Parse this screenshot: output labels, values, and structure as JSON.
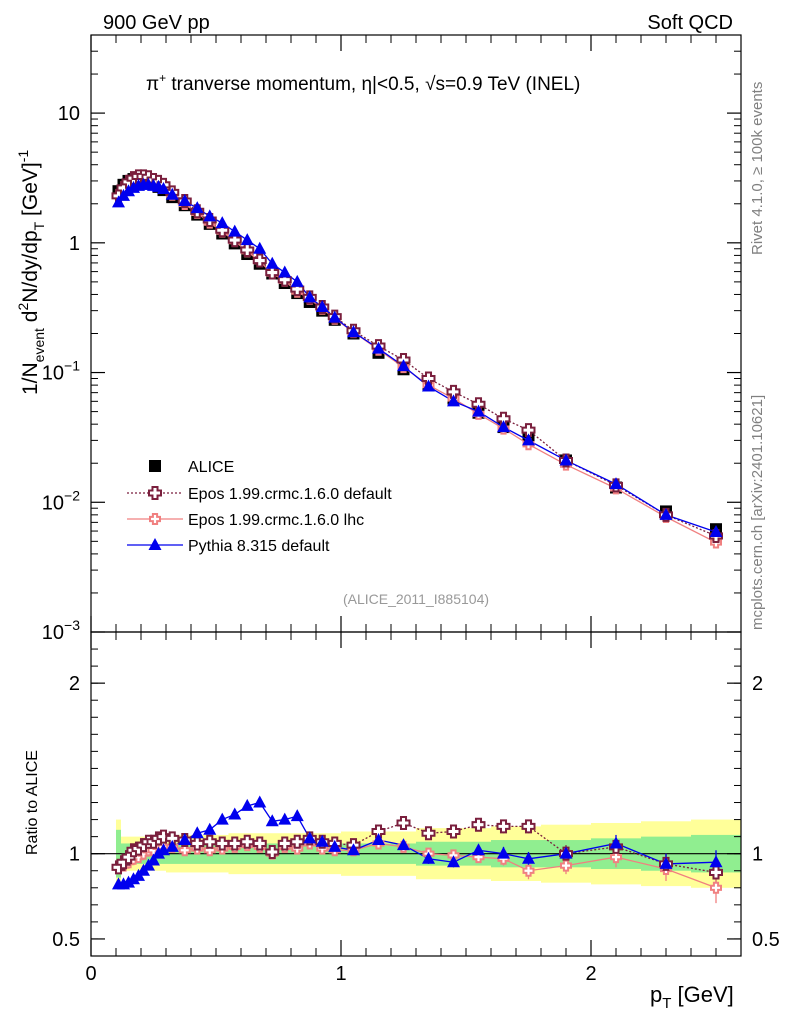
{
  "header": {
    "left": "900 GeV pp",
    "right": "Soft QCD"
  },
  "title": {
    "pi": "π",
    "sup": "+",
    "main": " tranverse momentum, ",
    "eta": "η",
    "cond": "|<0.5, ",
    "sqrt": "√",
    "energy": "s=0.9 TeV (INEL)"
  },
  "side": {
    "rivet": "Rivet 4.1.0, ≥ 100k events",
    "mcplots": "mcplots.cern.ch [arXiv:2401.10621]"
  },
  "analysis_id": "(ALICE_2011_I885104)",
  "ylabel": {
    "p1": "1/N",
    "s1": "event",
    "p2": " d",
    "s2": "2",
    "p3": "N/dy/dp",
    "s3": "T",
    "p4": " [GeV]",
    "s4": "-1"
  },
  "ratio_ylabel": "Ratio to ALICE",
  "xlabel": {
    "p1": "p",
    "s1": "T",
    "p2": " [GeV]"
  },
  "top_ticks": [
    {
      "text": "10",
      "sup": "",
      "v": 10
    },
    {
      "text": "1",
      "sup": "",
      "v": 1
    },
    {
      "text": "10",
      "sup": "−1",
      "v": 0.1
    },
    {
      "text": "10",
      "sup": "−2",
      "v": 0.01
    },
    {
      "text": "10",
      "sup": "−3",
      "v": 0.001
    }
  ],
  "ratio_ticks": [
    {
      "text": "2",
      "v": 2
    },
    {
      "text": "1",
      "v": 1
    },
    {
      "text": "0.5",
      "v": 0.5
    }
  ],
  "x_ticks": [
    {
      "text": "0",
      "v": 0
    },
    {
      "text": "1",
      "v": 1
    },
    {
      "text": "2",
      "v": 2
    }
  ],
  "legend": [
    {
      "key": "alice",
      "label": "ALICE"
    },
    {
      "key": "epos_def",
      "label": "Epos 1.99.crmc.1.6.0 default"
    },
    {
      "key": "epos_lhc",
      "label": "Epos 1.99.crmc.1.6.0 lhc"
    },
    {
      "key": "pythia",
      "label": "Pythia 8.315 default"
    }
  ],
  "colors": {
    "alice": "#000000",
    "epos_def": "#7a1f3d",
    "epos_lhc": "#f08080",
    "pythia": "#0000ee",
    "band_inner": "#90ee90",
    "band_outer": "#ffff99",
    "side_text": "#808080",
    "id_text": "#999999"
  },
  "chart_data": {
    "type": "line",
    "title": "π+ tranverse momentum, |η|<0.5, √s=0.9 TeV (INEL)",
    "xlabel": "pT [GeV]",
    "ylabel": "1/Nevent d2N/dy/dpT [GeV]-1",
    "xlim": [
      0,
      2.6
    ],
    "ylim": [
      0.001,
      40
    ],
    "yscale": "log",
    "ratio_ylim": [
      0.4,
      2.3
    ],
    "x": [
      0.11,
      0.13,
      0.15,
      0.17,
      0.19,
      0.21,
      0.23,
      0.25,
      0.27,
      0.29,
      0.325,
      0.375,
      0.425,
      0.475,
      0.525,
      0.575,
      0.625,
      0.675,
      0.725,
      0.775,
      0.825,
      0.875,
      0.925,
      0.975,
      1.05,
      1.15,
      1.25,
      1.35,
      1.45,
      1.55,
      1.65,
      1.75,
      1.9,
      2.1,
      2.3,
      2.5
    ],
    "series": [
      {
        "name": "ALICE",
        "values": [
          2.5,
          2.8,
          3.0,
          3.1,
          3.15,
          3.1,
          3.0,
          2.85,
          2.7,
          2.55,
          2.25,
          1.95,
          1.65,
          1.4,
          1.18,
          0.99,
          0.82,
          0.69,
          0.58,
          0.49,
          0.41,
          0.35,
          0.3,
          0.255,
          0.2,
          0.142,
          0.106,
          0.08,
          0.063,
          0.049,
          0.038,
          0.031,
          0.021,
          0.013,
          0.0085,
          0.0062
        ]
      },
      {
        "name": "Epos 1.99.crmc.1.6.0 default",
        "values": [
          2.3,
          2.65,
          2.95,
          3.15,
          3.25,
          3.25,
          3.2,
          3.05,
          2.95,
          2.8,
          2.45,
          2.1,
          1.75,
          1.5,
          1.25,
          1.05,
          0.88,
          0.73,
          0.59,
          0.52,
          0.44,
          0.38,
          0.32,
          0.27,
          0.21,
          0.16,
          0.125,
          0.09,
          0.071,
          0.057,
          0.044,
          0.036,
          0.021,
          0.0135,
          0.008,
          0.0055
        ]
      },
      {
        "name": "Epos 1.99.crmc.1.6.0 lhc",
        "values": [
          2.3,
          2.6,
          2.85,
          3.0,
          3.1,
          3.1,
          3.05,
          2.9,
          2.8,
          2.65,
          2.35,
          1.99,
          1.7,
          1.43,
          1.22,
          1.03,
          0.86,
          0.72,
          0.58,
          0.51,
          0.42,
          0.37,
          0.31,
          0.26,
          0.205,
          0.15,
          0.11,
          0.08,
          0.063,
          0.048,
          0.037,
          0.028,
          0.0195,
          0.0128,
          0.0077,
          0.0049
        ]
      },
      {
        "name": "Pythia 8.315 default",
        "values": [
          2.05,
          2.3,
          2.5,
          2.65,
          2.75,
          2.8,
          2.8,
          2.75,
          2.7,
          2.6,
          2.35,
          2.1,
          1.85,
          1.6,
          1.42,
          1.22,
          1.05,
          0.9,
          0.69,
          0.59,
          0.5,
          0.38,
          0.32,
          0.265,
          0.205,
          0.153,
          0.112,
          0.078,
          0.06,
          0.05,
          0.038,
          0.03,
          0.021,
          0.0138,
          0.008,
          0.0059
        ]
      }
    ],
    "ratio": {
      "epos_def": [
        0.92,
        0.95,
        0.98,
        1.02,
        1.03,
        1.05,
        1.07,
        1.07,
        1.09,
        1.1,
        1.09,
        1.08,
        1.06,
        1.07,
        1.06,
        1.06,
        1.07,
        1.06,
        1.01,
        1.06,
        1.07,
        1.09,
        1.07,
        1.06,
        1.05,
        1.13,
        1.18,
        1.12,
        1.13,
        1.17,
        1.16,
        1.16,
        1.0,
        1.04,
        0.94,
        0.89
      ],
      "epos_lhc": [
        0.92,
        0.93,
        0.95,
        0.97,
        0.98,
        1.0,
        1.02,
        1.02,
        1.04,
        1.04,
        1.04,
        1.02,
        1.03,
        1.02,
        1.03,
        1.04,
        1.05,
        1.04,
        1.0,
        1.04,
        1.03,
        1.06,
        1.03,
        1.02,
        1.02,
        1.06,
        1.04,
        1.0,
        0.99,
        0.98,
        0.97,
        0.9,
        0.93,
        0.98,
        0.91,
        0.8
      ],
      "pythia": [
        0.82,
        0.82,
        0.83,
        0.85,
        0.87,
        0.9,
        0.93,
        0.96,
        1.0,
        1.02,
        1.04,
        1.08,
        1.12,
        1.14,
        1.2,
        1.23,
        1.28,
        1.3,
        1.19,
        1.2,
        1.22,
        1.09,
        1.07,
        1.04,
        1.02,
        1.08,
        1.05,
        0.97,
        0.95,
        1.02,
        1.0,
        0.97,
        1.0,
        1.06,
        0.94,
        0.95
      ]
    },
    "ratio_err": {
      "epos_def": [
        0.02,
        0.02,
        0.02,
        0.02,
        0.02,
        0.02,
        0.02,
        0.02,
        0.02,
        0.02,
        0.02,
        0.02,
        0.02,
        0.02,
        0.02,
        0.02,
        0.02,
        0.02,
        0.02,
        0.02,
        0.02,
        0.02,
        0.02,
        0.02,
        0.02,
        0.03,
        0.03,
        0.03,
        0.03,
        0.03,
        0.04,
        0.04,
        0.05,
        0.05,
        0.06,
        0.06
      ],
      "epos_lhc": [
        0.02,
        0.02,
        0.02,
        0.02,
        0.02,
        0.02,
        0.02,
        0.02,
        0.02,
        0.02,
        0.02,
        0.02,
        0.02,
        0.02,
        0.02,
        0.02,
        0.02,
        0.02,
        0.02,
        0.02,
        0.02,
        0.02,
        0.02,
        0.02,
        0.02,
        0.03,
        0.03,
        0.03,
        0.03,
        0.03,
        0.04,
        0.05,
        0.05,
        0.06,
        0.07,
        0.09
      ],
      "pythia": [
        0.02,
        0.02,
        0.02,
        0.02,
        0.02,
        0.02,
        0.02,
        0.02,
        0.02,
        0.02,
        0.02,
        0.02,
        0.02,
        0.02,
        0.02,
        0.02,
        0.02,
        0.02,
        0.02,
        0.02,
        0.02,
        0.02,
        0.02,
        0.02,
        0.02,
        0.03,
        0.03,
        0.03,
        0.03,
        0.03,
        0.04,
        0.04,
        0.04,
        0.05,
        0.06,
        0.07
      ]
    },
    "band": {
      "x_edges": [
        0.1,
        0.12,
        0.3,
        0.55,
        0.8,
        1.0,
        1.3,
        1.6,
        1.8,
        2.0,
        2.2,
        2.4,
        2.6
      ],
      "inner": [
        0.14,
        0.06,
        0.06,
        0.06,
        0.06,
        0.06,
        0.07,
        0.08,
        0.08,
        0.09,
        0.1,
        0.11
      ],
      "outer": [
        0.2,
        0.1,
        0.11,
        0.12,
        0.12,
        0.13,
        0.15,
        0.16,
        0.17,
        0.18,
        0.19,
        0.2
      ]
    }
  }
}
